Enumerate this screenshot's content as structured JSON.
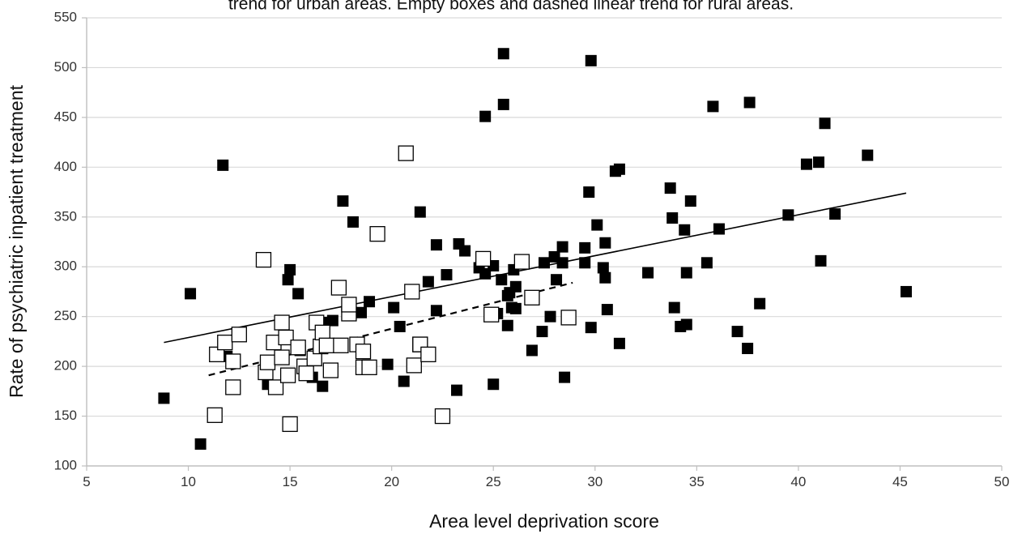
{
  "chart_data": {
    "type": "scatter",
    "title": "trend for urban areas. Empty boxes and dashed linear trend for rural areas.",
    "xlabel": "Area level deprivation score",
    "ylabel": "Rate of psychiatric inpatient  treatment",
    "xlim": [
      5,
      50
    ],
    "ylim": [
      100,
      550
    ],
    "xticks": [
      5,
      10,
      15,
      20,
      25,
      30,
      35,
      40,
      45,
      50
    ],
    "yticks": [
      100,
      150,
      200,
      250,
      300,
      350,
      400,
      450,
      500,
      550
    ],
    "grid": "horizontal",
    "series": [
      {
        "marker": "filled-square",
        "color": "#000000",
        "x": [
          8.8,
          10.6,
          10.1,
          11.7,
          11.9,
          13.9,
          15.0,
          14.9,
          15.5,
          15.4,
          16.1,
          16.6,
          16.7,
          17.1,
          17.6,
          18.1,
          18.5,
          18.9,
          19.8,
          20.1,
          20.4,
          20.6,
          21.4,
          21.8,
          22.2,
          22.2,
          22.7,
          23.2,
          23.3,
          23.6,
          24.3,
          24.6,
          24.6,
          25.0,
          25.0,
          25.2,
          25.4,
          25.5,
          25.5,
          25.7,
          25.7,
          25.8,
          25.9,
          26.0,
          26.1,
          26.1,
          26.9,
          27.4,
          27.5,
          27.8,
          28.0,
          28.1,
          28.4,
          28.4,
          28.5,
          29.5,
          29.5,
          29.7,
          29.8,
          29.8,
          30.1,
          30.4,
          30.5,
          30.5,
          30.6,
          31.0,
          31.2,
          31.2,
          32.6,
          33.7,
          33.8,
          33.9,
          34.2,
          34.4,
          34.5,
          34.5,
          34.7,
          35.5,
          35.8,
          36.1,
          37.0,
          37.5,
          37.6,
          38.1,
          39.5,
          40.4,
          41.0,
          41.1,
          41.3,
          41.8,
          43.4,
          45.3
        ],
        "y": [
          168,
          122,
          273,
          402,
          210,
          182,
          297,
          287,
          216,
          273,
          189,
          180,
          244,
          246,
          366,
          345,
          254,
          265,
          202,
          259,
          240,
          185,
          355,
          285,
          322,
          256,
          292,
          176,
          323,
          316,
          299,
          293,
          451,
          301,
          182,
          253,
          287,
          463,
          514,
          241,
          271,
          274,
          259,
          297,
          258,
          280,
          216,
          235,
          304,
          250,
          310,
          287,
          320,
          304,
          189,
          319,
          304,
          375,
          239,
          507,
          342,
          299,
          324,
          289,
          257,
          396,
          398,
          223,
          294,
          379,
          349,
          259,
          240,
          337,
          242,
          294,
          366,
          304,
          461,
          338,
          235,
          218,
          465,
          263,
          352,
          403,
          405,
          306,
          444,
          353,
          412,
          275
        ]
      },
      {
        "marker": "empty-square",
        "color": "#000000",
        "x": [
          11.3,
          11.4,
          11.8,
          12.2,
          12.2,
          12.5,
          13.7,
          13.8,
          13.9,
          14.2,
          14.3,
          14.6,
          14.6,
          14.8,
          14.9,
          15.0,
          15.4,
          15.7,
          15.8,
          16.2,
          16.3,
          16.5,
          16.6,
          16.8,
          17.0,
          17.4,
          17.5,
          17.9,
          17.9,
          18.3,
          18.6,
          18.6,
          18.9,
          19.3,
          20.7,
          21.0,
          21.1,
          21.4,
          21.4,
          21.8,
          22.5,
          24.5,
          24.9,
          26.4,
          26.9,
          28.7
        ],
        "y": [
          151,
          212,
          224,
          205,
          179,
          232,
          307,
          194,
          204,
          224,
          179,
          244,
          209,
          229,
          191,
          142,
          219,
          200,
          193,
          208,
          244,
          220,
          234,
          221,
          196,
          279,
          221,
          253,
          262,
          222,
          215,
          199,
          199,
          333,
          414,
          275,
          201,
          222,
          222,
          212,
          150,
          308,
          252,
          305,
          269,
          249
        ]
      }
    ],
    "trendlines": [
      {
        "style": "solid",
        "x": [
          8.8,
          45.3
        ],
        "y": [
          224,
          374
        ]
      },
      {
        "style": "dashed",
        "x": [
          11.0,
          28.9
        ],
        "y": [
          191,
          284
        ]
      }
    ]
  }
}
